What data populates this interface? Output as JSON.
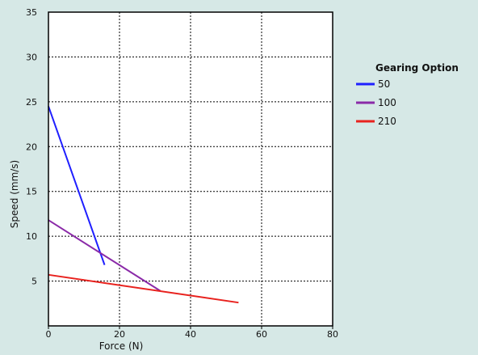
{
  "chart_data": {
    "type": "line",
    "title": "",
    "xlabel": "Force (N)",
    "ylabel": "Speed (mm/s)",
    "xlim": [
      0,
      80
    ],
    "ylim": [
      0,
      35
    ],
    "x_ticks": [
      0,
      20,
      40,
      60,
      80
    ],
    "y_ticks": [
      5,
      10,
      15,
      20,
      25,
      30,
      35
    ],
    "grid": true,
    "legend": {
      "title": "Gearing Option",
      "position": "right"
    },
    "series": [
      {
        "name": "50",
        "color": "#1f1fff",
        "points": [
          [
            0,
            24.5
          ],
          [
            15.8,
            6.8
          ]
        ]
      },
      {
        "name": "100",
        "color": "#8a2aa8",
        "points": [
          [
            0,
            11.8
          ],
          [
            31.5,
            3.9
          ]
        ]
      },
      {
        "name": "210",
        "color": "#e8221e",
        "points": [
          [
            0,
            5.7
          ],
          [
            53.5,
            2.6
          ]
        ]
      }
    ]
  }
}
